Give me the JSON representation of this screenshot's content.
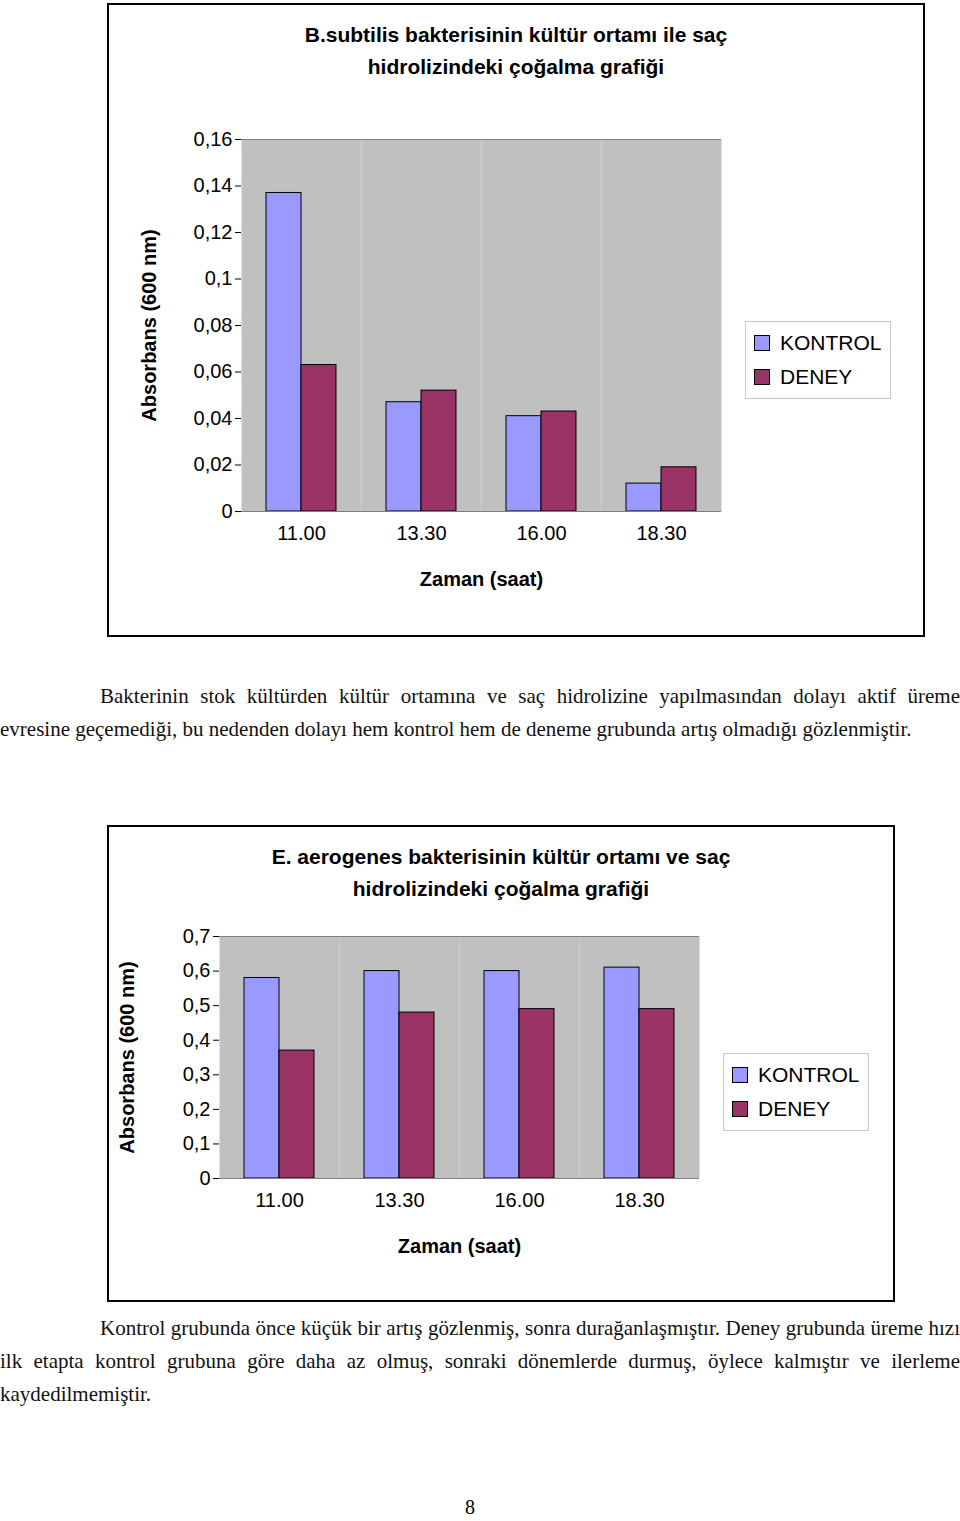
{
  "chart_data": [
    {
      "type": "bar",
      "title": "B.subtilis bakterisinin kültür ortamı ile saç hidrolizindeki çoğalma grafiği",
      "x_label": "Zaman (saat)",
      "y_label": "Absorbans (600 nm)",
      "categories": [
        "11.00",
        "13.30",
        "16.00",
        "18.30"
      ],
      "series": [
        {
          "name": "KONTROL",
          "color": "#9999ff",
          "values": [
            0.137,
            0.047,
            0.041,
            0.012
          ]
        },
        {
          "name": "DENEY",
          "color": "#993366",
          "values": [
            0.063,
            0.052,
            0.043,
            0.019
          ]
        }
      ],
      "ylim": [
        0,
        0.16
      ],
      "yticks": [
        0,
        {
          "value": 0.02,
          "label": "0,02"
        },
        {
          "value": 0.04,
          "label": "0,04"
        },
        {
          "value": 0.06,
          "label": "0,06"
        },
        {
          "value": 0.08,
          "label": "0,08"
        },
        {
          "value": 0.1,
          "label": "0,1"
        },
        {
          "value": 0.12,
          "label": "0,12"
        },
        {
          "value": 0.14,
          "label": "0,14"
        },
        {
          "value": 0.16,
          "label": "0,16"
        }
      ],
      "grid": false,
      "legend": "right"
    },
    {
      "type": "bar",
      "title": "E. aerogenes bakterisinin kültür ortamı ve saç hidrolizindeki çoğalma grafiği",
      "x_label": "Zaman (saat)",
      "y_label": "Absorbans (600 nm)",
      "categories": [
        "11.00",
        "13.30",
        "16.00",
        "18.30"
      ],
      "series": [
        {
          "name": "KONTROL",
          "color": "#9999ff",
          "values": [
            0.58,
            0.6,
            0.6,
            0.61
          ]
        },
        {
          "name": "DENEY",
          "color": "#993366",
          "values": [
            0.37,
            0.48,
            0.49,
            0.49
          ]
        }
      ],
      "ylim": [
        0,
        0.7
      ],
      "yticks": [
        0,
        {
          "value": 0.1,
          "label": "0,1"
        },
        {
          "value": 0.2,
          "label": "0,2"
        },
        {
          "value": 0.3,
          "label": "0,3"
        },
        {
          "value": 0.4,
          "label": "0,4"
        },
        {
          "value": 0.5,
          "label": "0,5"
        },
        {
          "value": 0.6,
          "label": "0,6"
        },
        {
          "value": 0.7,
          "label": "0,7"
        }
      ],
      "grid": false,
      "legend": "right"
    }
  ],
  "paragraphs": [
    "Bakterinin stok kültürden kültür ortamına ve saç hidrolizine yapılmasından dolayı aktif üreme evresine geçemediği, bu nedenden dolayı hem kontrol hem de deneme grubunda artış olmadığı gözlenmiştir.",
    "Kontrol grubunda önce küçük bir artış gözlenmiş, sonra durağanlaşmıştır. Deney grubunda üreme hızı ilk etapta kontrol grubuna göre daha az olmuş, sonraki dönemlerde durmuş, öylece kalmıştır ve ilerleme kaydedilmemiştir."
  ],
  "page_number": 8
}
